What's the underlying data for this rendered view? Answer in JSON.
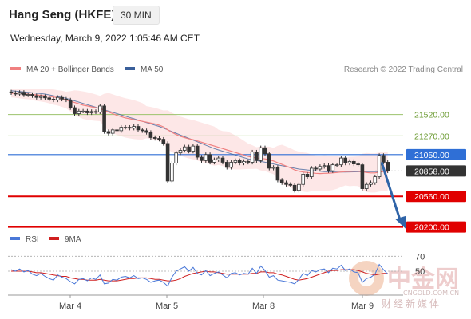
{
  "header": {
    "title": "Hang Seng (HKFE)",
    "timeframe": "30 MIN",
    "datetime": "Wednesday, March 9, 2022 1:05:46 AM CET"
  },
  "legend": {
    "ma20": "MA 20 + Bollinger Bands",
    "ma50": "MA 50",
    "credit": "Research © 2022 Trading Central",
    "rsi": "RSI",
    "rsi_ma": "9MA"
  },
  "colors": {
    "ma20": "#f08080",
    "bollinger_fill": "#fde3e3",
    "ma50": "#3a5f9a",
    "resistance": "#9bc36b",
    "pivot": "#2f6fd6",
    "support": "#e00000",
    "price_tag": "#333333",
    "arrow": "#2f64a8",
    "rsi": "#4a78d8",
    "rsi_ma": "#d02020"
  },
  "watermark": {
    "brand": "中金网",
    "tagline": "财经新媒体",
    "site": "CNGOLD.COM.CN"
  },
  "chart_data": {
    "type": "candlestick",
    "x_labels": [
      "Mar 4",
      "Mar 5",
      "Mar 8",
      "Mar 9"
    ],
    "y_range": [
      20150,
      21900
    ],
    "levels": [
      {
        "label": "21520.00",
        "value": 21520,
        "kind": "resistance"
      },
      {
        "label": "21270.00",
        "value": 21270,
        "kind": "resistance"
      },
      {
        "label": "21050.00",
        "value": 21050,
        "kind": "pivot"
      },
      {
        "label": "20858.00",
        "value": 20858,
        "kind": "last"
      },
      {
        "label": "20560.00",
        "value": 20560,
        "kind": "support"
      },
      {
        "label": "20200.00",
        "value": 20200,
        "kind": "support"
      }
    ],
    "close": [
      21775,
      21760,
      21780,
      21750,
      21755,
      21740,
      21720,
      21730,
      21715,
      21700,
      21690,
      21720,
      21700,
      21690,
      21600,
      21530,
      21560,
      21560,
      21540,
      21555,
      21550,
      21620,
      21320,
      21300,
      21340,
      21330,
      21370,
      21370,
      21360,
      21380,
      21340,
      21330,
      21310,
      21250,
      21240,
      21230,
      21180,
      20740,
      20950,
      21070,
      21100,
      21140,
      21090,
      21150,
      21020,
      20980,
      21050,
      20960,
      20990,
      21010,
      20960,
      20900,
      20960,
      20980,
      20950,
      20970,
      20960,
      21080,
      20980,
      21130,
      21060,
      20890,
      20900,
      20750,
      20720,
      20700,
      20690,
      20630,
      20700,
      20820,
      20790,
      20890,
      20880,
      20910,
      20920,
      20860,
      20930,
      20930,
      21010,
      20950,
      20970,
      20940,
      20930,
      20650,
      20700,
      20720,
      20790,
      21040,
      20960,
      20858
    ],
    "ma20_values": [
      21770,
      21768,
      21766,
      21762,
      21758,
      21754,
      21750,
      21745,
      21740,
      21733,
      21725,
      21715,
      21705,
      21690,
      21675,
      21660,
      21645,
      21630,
      21620,
      21610,
      21600,
      21590,
      21570,
      21550,
      21530,
      21510,
      21495,
      21480,
      21470,
      21460,
      21450,
      21440,
      21430,
      21420,
      21410,
      21395,
      21375,
      21340,
      21310,
      21285,
      21265,
      21250,
      21235,
      21225,
      21210,
      21195,
      21180,
      21165,
      21150,
      21135,
      21120,
      21105,
      21090,
      21075,
      21060,
      21045,
      21030,
      21020,
      21010,
      21005,
      21000,
      20990,
      20975,
      20955,
      20935,
      20915,
      20895,
      20870,
      20855,
      20845,
      20840,
      20835,
      20830,
      20828,
      20830,
      20832,
      20835,
      20840,
      20845,
      20850,
      20852,
      20855,
      20855,
      20848,
      20840,
      20835,
      20835,
      20845,
      20850,
      20850
    ],
    "ma50_values": [
      21800,
      21795,
      21790,
      21785,
      21780,
      21775,
      21770,
      21765,
      21760,
      21750,
      21740,
      21730,
      21720,
      21710,
      21695,
      21680,
      21665,
      21650,
      21635,
      21620,
      21605,
      21590,
      21575,
      21560,
      21545,
      21530,
      21515,
      21500,
      21485,
      21470,
      21455,
      21440,
      21425,
      21410,
      21395,
      21380,
      21360,
      21340,
      21320,
      21300,
      21280,
      21260,
      21240,
      21220,
      21200,
      21180,
      21160,
      21140,
      21120,
      21105,
      21090,
      21075,
      21060,
      21045,
      21030,
      21015,
      21000,
      20990,
      20980,
      20970,
      20960,
      20950,
      20940,
      20930,
      20920,
      20910,
      20900,
      20890,
      20880,
      20875,
      20870,
      20865,
      20860,
      20855,
      20850,
      20848,
      20846,
      20845,
      20845,
      20845,
      20846,
      20847,
      20848,
      20848,
      20849,
      20850,
      20850,
      20852,
      20853,
      20855
    ],
    "projection": [
      {
        "value": 20960
      },
      {
        "value": 20200
      }
    ],
    "rsi": {
      "y_range": [
        20,
        80
      ],
      "ticks": [
        "70",
        "50"
      ],
      "rsi_values": [
        52,
        50,
        53,
        49,
        51,
        46,
        44,
        47,
        43,
        40,
        38,
        45,
        42,
        40,
        36,
        33,
        39,
        40,
        37,
        41,
        39,
        45,
        33,
        34,
        39,
        38,
        42,
        43,
        41,
        44,
        40,
        41,
        39,
        35,
        37,
        38,
        35,
        30,
        42,
        50,
        53,
        56,
        50,
        55,
        47,
        45,
        51,
        44,
        47,
        49,
        45,
        41,
        47,
        48,
        45,
        47,
        46,
        54,
        47,
        57,
        51,
        42,
        44,
        38,
        37,
        36,
        35,
        33,
        39,
        47,
        44,
        51,
        49,
        52,
        53,
        48,
        54,
        53,
        58,
        51,
        53,
        49,
        48,
        35,
        40,
        42,
        46,
        59,
        52,
        46
      ],
      "ma_values": [
        50,
        50,
        50,
        50,
        50,
        49,
        48,
        48,
        47,
        46,
        45,
        44,
        43,
        43,
        41,
        40,
        39,
        39,
        38,
        38,
        38,
        39,
        38,
        37,
        37,
        37,
        38,
        39,
        40,
        40,
        41,
        41,
        41,
        40,
        39,
        39,
        38,
        37,
        37,
        38,
        40,
        43,
        45,
        47,
        48,
        49,
        50,
        49,
        49,
        48,
        47,
        46,
        46,
        46,
        46,
        46,
        46,
        47,
        47,
        49,
        49,
        48,
        48,
        46,
        45,
        43,
        41,
        39,
        38,
        39,
        40,
        42,
        44,
        46,
        48,
        50,
        51,
        51,
        52,
        52,
        52,
        52,
        51,
        49,
        47,
        46,
        45,
        46,
        47,
        47
      ]
    }
  }
}
